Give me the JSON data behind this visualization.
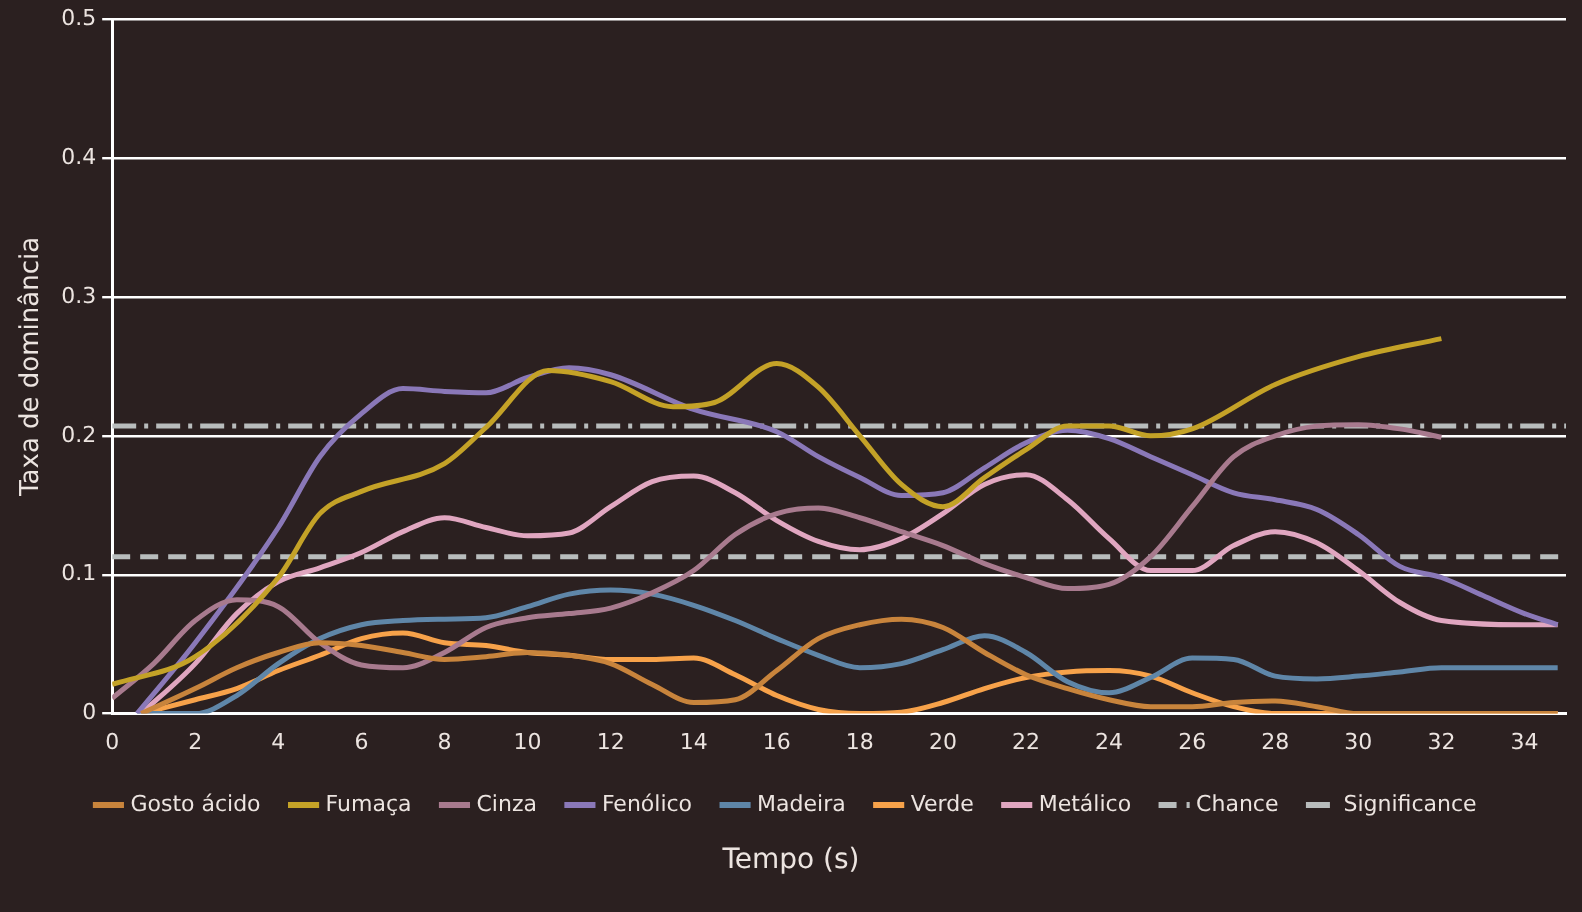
{
  "chart_data": {
    "type": "line",
    "xlabel": "Tempo (s)",
    "ylabel": "Taxa de dominância",
    "xlim": [
      0,
      35
    ],
    "xticks": [
      0,
      2,
      4,
      6,
      8,
      10,
      12,
      14,
      16,
      18,
      20,
      22,
      24,
      26,
      28,
      30,
      32,
      34
    ],
    "ylim": [
      0,
      0.5
    ],
    "yticks": [
      0,
      0.1,
      0.2,
      0.3,
      0.4,
      0.5
    ],
    "grid": "y",
    "legend": "bottom",
    "line_style": "solid",
    "marker": "none",
    "series": [
      {
        "name": "Gosto ácido",
        "color": "#c8843c",
        "x": [
          0.7,
          2,
          3,
          4,
          5,
          6,
          7,
          8,
          9,
          10,
          11,
          12,
          13,
          14,
          15,
          16,
          17,
          18,
          19,
          20,
          21,
          22,
          23,
          24,
          25,
          26,
          27,
          28,
          29,
          30,
          34.8
        ],
        "values": [
          0,
          0.018,
          0.033,
          0.044,
          0.051,
          0.049,
          0.044,
          0.039,
          0.041,
          0.044,
          0.042,
          0.036,
          0.021,
          0.008,
          0.01,
          0.031,
          0.054,
          0.064,
          0.068,
          0.062,
          0.044,
          0.028,
          0.018,
          0.01,
          0.005,
          0.005,
          0.008,
          0.009,
          0.005,
          0,
          0
        ]
      },
      {
        "name": "Fumaça",
        "color": "#c4a227",
        "x": [
          0,
          2,
          4,
          5,
          6,
          8,
          9,
          10.5,
          12,
          13.5,
          14.5,
          16,
          17,
          18,
          19,
          20,
          21,
          22,
          23,
          24,
          25,
          26,
          28,
          30,
          32
        ],
        "values": [
          0.021,
          0.041,
          0.098,
          0.144,
          0.16,
          0.18,
          0.206,
          0.247,
          0.239,
          0.221,
          0.224,
          0.252,
          0.235,
          0.2,
          0.165,
          0.149,
          0.17,
          0.19,
          0.207,
          0.207,
          0.2,
          0.205,
          0.237,
          0.257,
          0.27
        ]
      },
      {
        "name": "Cinza",
        "color": "#a87a8e",
        "x": [
          0,
          1,
          2,
          3,
          4,
          5,
          6,
          7,
          8,
          9,
          10,
          11,
          12,
          13,
          14,
          15,
          16,
          17,
          18,
          19,
          20,
          21,
          22,
          23,
          24,
          25,
          26,
          27,
          28,
          29,
          30,
          31,
          32
        ],
        "values": [
          0.011,
          0.036,
          0.067,
          0.082,
          0.077,
          0.051,
          0.035,
          0.033,
          0.044,
          0.062,
          0.069,
          0.072,
          0.076,
          0.087,
          0.103,
          0.129,
          0.144,
          0.148,
          0.141,
          0.131,
          0.121,
          0.108,
          0.098,
          0.09,
          0.093,
          0.113,
          0.149,
          0.185,
          0.2,
          0.207,
          0.208,
          0.205,
          0.199
        ]
      },
      {
        "name": "Fenólico",
        "color": "#8a78b8",
        "x": [
          0.6,
          2,
          4,
          5,
          6,
          7,
          8,
          9,
          10,
          11,
          12,
          14,
          16,
          17,
          18,
          19,
          20,
          21,
          22,
          23,
          24,
          25,
          26,
          27,
          28,
          29,
          30,
          31,
          32,
          33,
          34,
          34.8
        ],
        "values": [
          0,
          0.051,
          0.134,
          0.185,
          0.216,
          0.234,
          0.232,
          0.231,
          0.242,
          0.249,
          0.244,
          0.219,
          0.203,
          0.185,
          0.17,
          0.157,
          0.159,
          0.177,
          0.195,
          0.204,
          0.198,
          0.185,
          0.172,
          0.159,
          0.154,
          0.147,
          0.129,
          0.106,
          0.098,
          0.085,
          0.072,
          0.064
        ]
      },
      {
        "name": "Madeira",
        "color": "#5f86a8",
        "x": [
          0.6,
          2,
          3,
          4,
          5,
          6,
          7,
          8,
          9,
          10,
          11,
          12,
          13,
          14,
          15,
          16,
          17,
          18,
          19,
          20,
          21,
          22,
          23,
          24,
          25,
          26,
          27,
          28,
          29,
          30,
          31,
          32,
          34,
          34.8
        ],
        "values": [
          0,
          0,
          0.013,
          0.036,
          0.054,
          0.064,
          0.067,
          0.068,
          0.069,
          0.077,
          0.086,
          0.089,
          0.086,
          0.078,
          0.067,
          0.054,
          0.042,
          0.033,
          0.036,
          0.046,
          0.056,
          0.044,
          0.023,
          0.015,
          0.026,
          0.04,
          0.039,
          0.027,
          0.025,
          0.027,
          0.03,
          0.033,
          0.033,
          0.033
        ]
      },
      {
        "name": "Verde",
        "color": "#f7a24a",
        "x": [
          0.7,
          2,
          3,
          4,
          5,
          6,
          7,
          8,
          9,
          10,
          11,
          12,
          13,
          14,
          15,
          16,
          17,
          18,
          19,
          20,
          21,
          22,
          23,
          24,
          25,
          26,
          27,
          28,
          34.8
        ],
        "values": [
          0,
          0.01,
          0.018,
          0.031,
          0.042,
          0.054,
          0.058,
          0.051,
          0.049,
          0.044,
          0.042,
          0.039,
          0.039,
          0.04,
          0.028,
          0.013,
          0.003,
          0,
          0.001,
          0.008,
          0.018,
          0.026,
          0.03,
          0.031,
          0.027,
          0.015,
          0.005,
          0,
          0
        ]
      },
      {
        "name": "Metálico",
        "color": "#e0a6c0",
        "x": [
          0.7,
          2,
          3,
          4,
          5,
          6,
          7,
          8,
          9,
          10,
          11,
          12,
          13,
          14,
          15,
          16,
          17,
          18,
          19,
          20,
          21,
          22,
          23,
          24,
          25,
          26,
          27,
          28,
          29,
          30,
          31,
          32,
          34,
          34.8
        ],
        "values": [
          0,
          0.036,
          0.072,
          0.095,
          0.105,
          0.116,
          0.131,
          0.141,
          0.134,
          0.128,
          0.13,
          0.149,
          0.167,
          0.171,
          0.159,
          0.139,
          0.124,
          0.118,
          0.126,
          0.144,
          0.165,
          0.172,
          0.154,
          0.126,
          0.103,
          0.103,
          0.121,
          0.131,
          0.123,
          0.103,
          0.08,
          0.067,
          0.064,
          0.064
        ]
      }
    ],
    "ref_lines": [
      {
        "axis": "y",
        "value": 0.113,
        "label": "Chance",
        "color": "#b8bcbc",
        "line_style": "dashed"
      },
      {
        "axis": "y",
        "value": 0.207,
        "label": "Significance",
        "color": "#b8bcbc",
        "line_style": "dashdot"
      }
    ]
  }
}
